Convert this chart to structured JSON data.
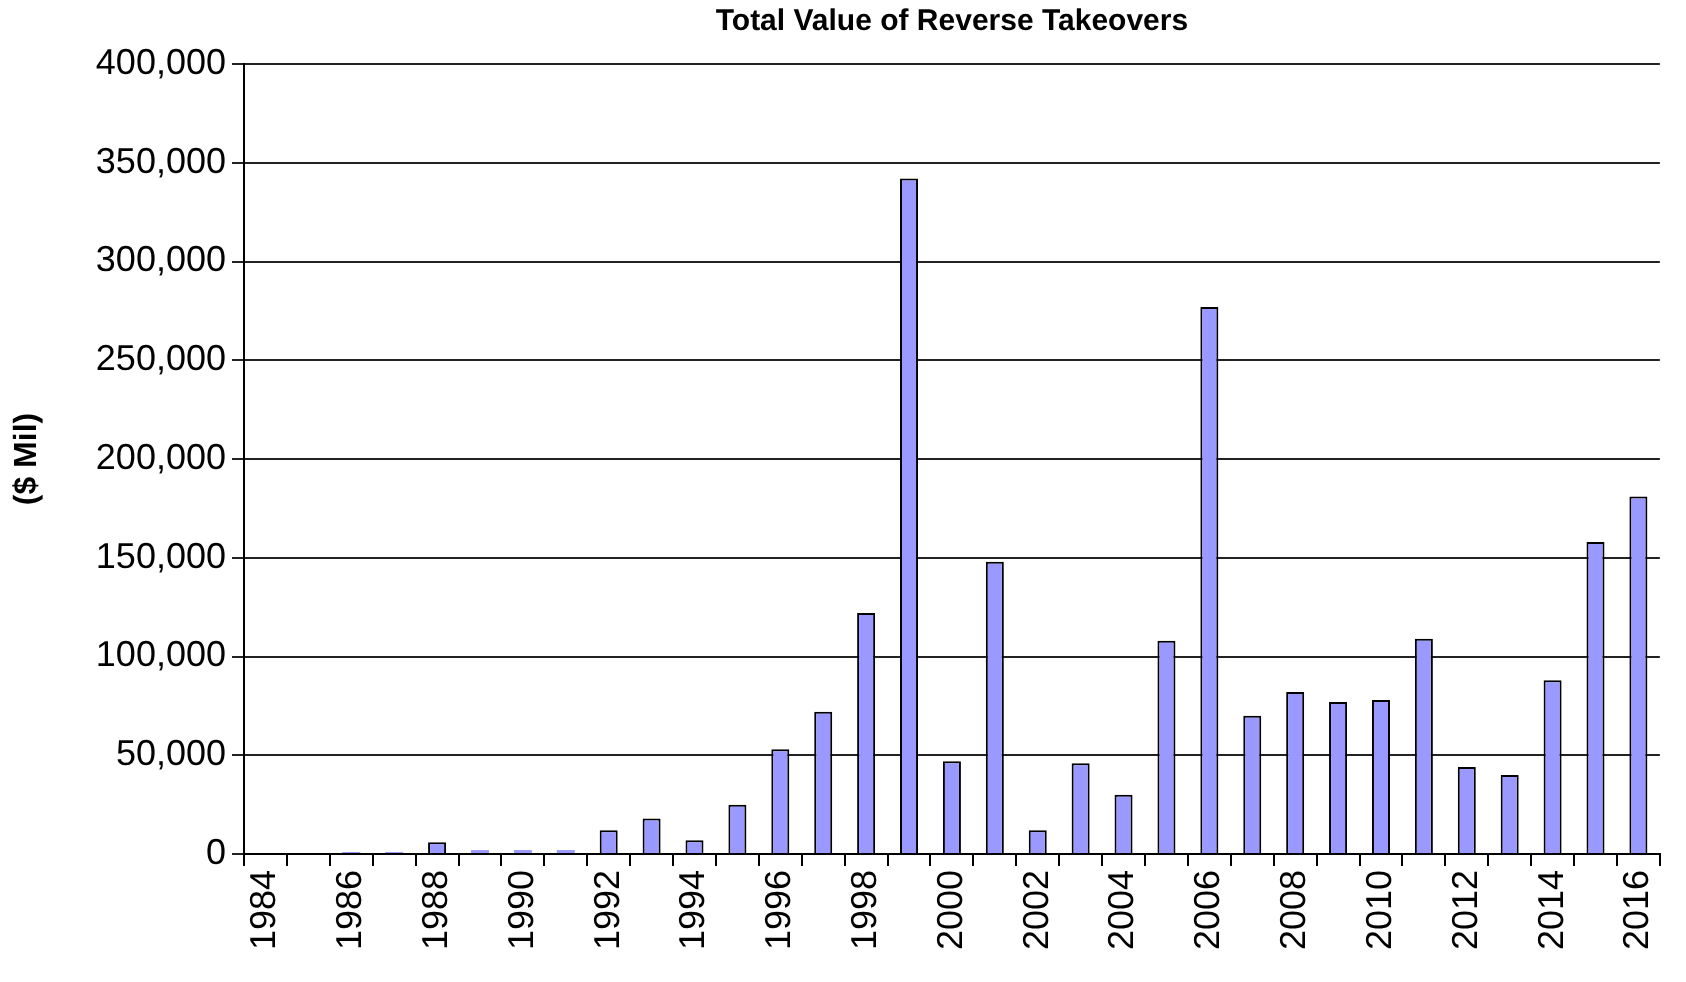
{
  "chart_data": {
    "type": "bar",
    "title": "Total Value of Reverse Takeovers",
    "ylabel": "($ Mil)",
    "categories": [
      "1984",
      null,
      "1986",
      null,
      "1988",
      null,
      "1990",
      null,
      "1992",
      null,
      "1994",
      null,
      "1996",
      null,
      "1998",
      null,
      "2000",
      null,
      "2002",
      null,
      "2004",
      null,
      "2006",
      null,
      "2008",
      null,
      "2010",
      null,
      "2012",
      null,
      "2014",
      null,
      "2016"
    ],
    "values": [
      0,
      0,
      1000,
      1000,
      6000,
      2000,
      2000,
      2000,
      12000,
      18000,
      7000,
      25000,
      53000,
      72000,
      122000,
      342000,
      47000,
      148000,
      12000,
      46000,
      30000,
      108000,
      277000,
      70000,
      82000,
      77000,
      78000,
      109000,
      44000,
      40000,
      88000,
      158000,
      181000
    ],
    "color": "#9999ff",
    "ylim": [
      0,
      400000
    ],
    "yticks": [
      {
        "value": 0,
        "label": "0"
      },
      {
        "value": 50000,
        "label": "50,000"
      },
      {
        "value": 100000,
        "label": "100,000"
      },
      {
        "value": 150000,
        "label": "150,000"
      },
      {
        "value": 200000,
        "label": "200,000"
      },
      {
        "value": 250000,
        "label": "250,000"
      },
      {
        "value": 300000,
        "label": "300,000"
      },
      {
        "value": 350000,
        "label": "350,000"
      },
      {
        "value": 400000,
        "label": "400,000"
      }
    ],
    "grid": "y"
  }
}
